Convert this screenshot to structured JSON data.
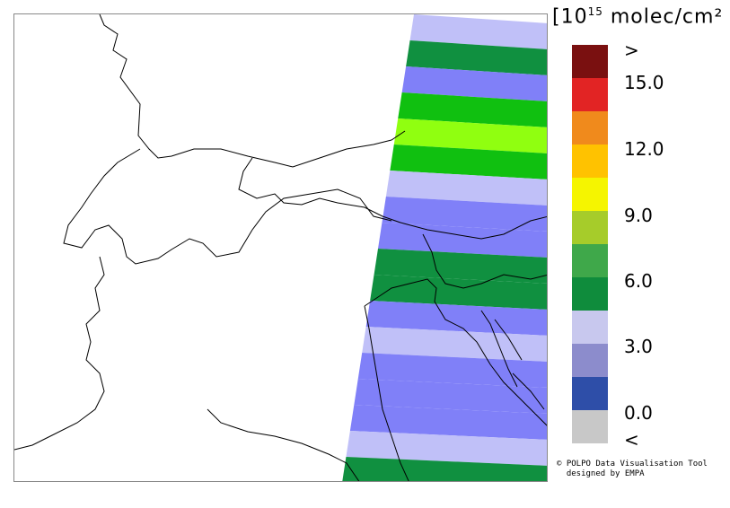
{
  "unit": {
    "prefix": "10",
    "exponent": "15",
    "text": " molec/cm²",
    "open_bracket": "[",
    "close_bracket": "]"
  },
  "legend": {
    "colors": [
      "#7a1010",
      "#e22424",
      "#f08a1c",
      "#ffc200",
      "#f5f500",
      "#a6cc2a",
      "#3fa84a",
      "#0f8c3c",
      "#c8c8ee",
      "#8c8ccc",
      "#2e4ea8",
      "#c8c8c8"
    ],
    "labels": [
      ">",
      "15.0",
      "12.0",
      "9.0",
      "6.0",
      "3.0",
      "0.0",
      "<"
    ]
  },
  "credit": {
    "line1": "© POLPO Data Visualisation Tool",
    "line2": "  designed by EMPA"
  },
  "map": {
    "region": "Alps / Northern Italy / Adriatic",
    "band_colors": {
      "light": "#c0c0f8",
      "mid": "#8080f8",
      "dark_green": "#109040",
      "green": "#10c010",
      "lime": "#90ff10"
    },
    "bands": [
      "light",
      "dark_green",
      "mid",
      "green",
      "lime",
      "green",
      "light",
      "mid",
      "mid",
      "dark_green",
      "dark_green",
      "mid",
      "light",
      "mid",
      "mid",
      "mid",
      "light",
      "dark_green"
    ]
  }
}
